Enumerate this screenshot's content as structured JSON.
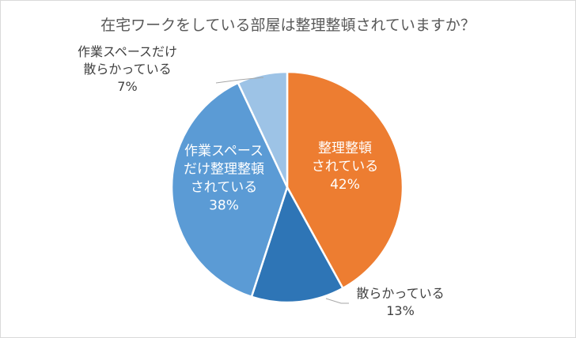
{
  "chart_data": {
    "type": "pie",
    "title": "在宅ワークをしている部屋は整理整頓されていますか？",
    "slices": [
      {
        "label_lines": [
          "整理整頓",
          "されている"
        ],
        "value": 42,
        "value_label": "42%",
        "color": "#ED7D31",
        "label_placement": "inside"
      },
      {
        "label_lines": [
          "散らかっている"
        ],
        "value": 13,
        "value_label": "13%",
        "color": "#2E75B6",
        "label_placement": "outside"
      },
      {
        "label_lines": [
          "作業スペース",
          "だけ整理整頓",
          "されている"
        ],
        "value": 38,
        "value_label": "38%",
        "color": "#5B9BD5",
        "label_placement": "inside"
      },
      {
        "label_lines": [
          "作業スペースだけ",
          "散らかっている"
        ],
        "value": 7,
        "value_label": "7%",
        "color": "#9DC3E6",
        "label_placement": "outside"
      }
    ]
  }
}
